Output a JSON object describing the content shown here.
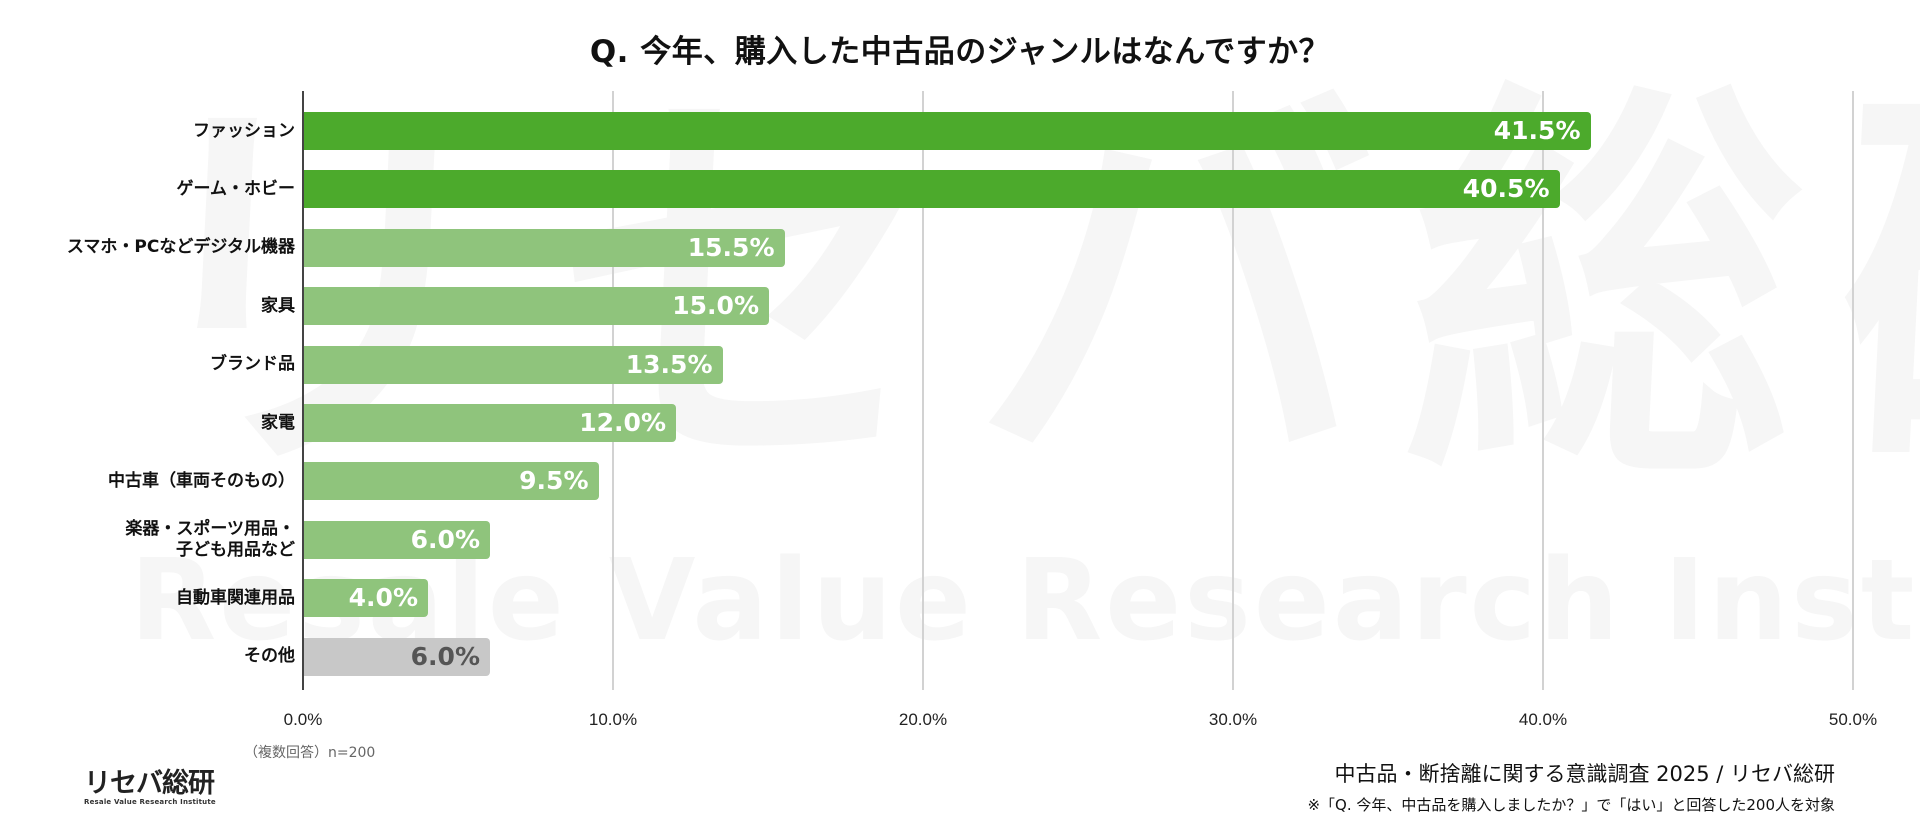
{
  "title": "Q. 今年、購入した中古品のジャンルはなんですか？",
  "watermark": {
    "jp": "リセバ総研",
    "en": "Resale Value Research Institute"
  },
  "colors": {
    "top_bar": "#4caa2c",
    "mid_bar": "#8fc47c",
    "other_bar": "#c8c8c8",
    "other_label": "#555555",
    "gridline": "#d2d2d2"
  },
  "axis": {
    "ticks": [
      "0.0%",
      "10.0%",
      "20.0%",
      "30.0%",
      "40.0%",
      "50.0%"
    ]
  },
  "chart_data": {
    "type": "bar",
    "orientation": "horizontal",
    "title": "Q. 今年、購入した中古品のジャンルはなんですか？",
    "categories": [
      "ファッション",
      "ゲーム・ホビー",
      "スマホ・PCなどデジタル機器",
      "家具",
      "ブランド品",
      "家電",
      "中古車（車両そのもの）",
      "楽器・スポーツ用品・子ども用品など",
      "自動車関連用品",
      "その他"
    ],
    "values": [
      41.5,
      40.5,
      15.5,
      15.0,
      13.5,
      12.0,
      9.5,
      6.0,
      4.0,
      6.0
    ],
    "value_labels": [
      "41.5%",
      "40.5%",
      "15.5%",
      "15.0%",
      "13.5%",
      "12.0%",
      "9.5%",
      "6.0%",
      "4.0%",
      "6.0%"
    ],
    "xlabel": "",
    "ylabel": "",
    "xlim": [
      0,
      50
    ],
    "xticks": [
      "0.0%",
      "10.0%",
      "20.0%",
      "30.0%",
      "40.0%",
      "50.0%"
    ],
    "grid": "vertical",
    "legend": "none"
  },
  "rows": [
    {
      "label_lines": [
        "ファッション"
      ],
      "value": 41.5,
      "label": "41.5%",
      "tone": "top"
    },
    {
      "label_lines": [
        "ゲーム・ホビー"
      ],
      "value": 40.5,
      "label": "40.5%",
      "tone": "top"
    },
    {
      "label_lines": [
        "スマホ・PCなどデジタル機器"
      ],
      "value": 15.5,
      "label": "15.5%",
      "tone": "mid"
    },
    {
      "label_lines": [
        "家具"
      ],
      "value": 15.0,
      "label": "15.0%",
      "tone": "mid"
    },
    {
      "label_lines": [
        "ブランド品"
      ],
      "value": 13.5,
      "label": "13.5%",
      "tone": "mid"
    },
    {
      "label_lines": [
        "家電"
      ],
      "value": 12.0,
      "label": "12.0%",
      "tone": "mid"
    },
    {
      "label_lines": [
        "中古車（車両そのもの）"
      ],
      "value": 9.5,
      "label": "9.5%",
      "tone": "mid"
    },
    {
      "label_lines": [
        "楽器・スポーツ用品・",
        "子ども用品など"
      ],
      "value": 6.0,
      "label": "6.0%",
      "tone": "mid"
    },
    {
      "label_lines": [
        "自動車関連用品"
      ],
      "value": 4.0,
      "label": "4.0%",
      "tone": "mid"
    },
    {
      "label_lines": [
        "その他"
      ],
      "value": 6.0,
      "label": "6.0%",
      "tone": "other"
    }
  ],
  "note_n": "（複数回答）n=200",
  "logo": {
    "jp": "リセバ総研",
    "en": "Resale Value Research Institute"
  },
  "source": "中古品・断捨離に関する意識調査 2025 / リセバ総研",
  "footnote": "※「Q. 今年、中古品を購入しましたか？」で「はい」と回答した200人を対象"
}
